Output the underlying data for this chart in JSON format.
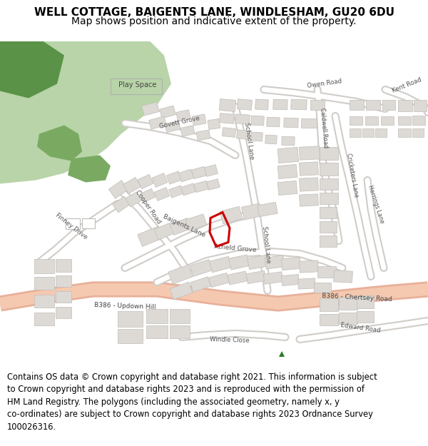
{
  "title_line1": "WELL COTTAGE, BAIGENTS LANE, WINDLESHAM, GU20 6DU",
  "title_line2": "Map shows position and indicative extent of the property.",
  "footer_text": "Contains OS data © Crown copyright and database right 2021. This information is subject to Crown copyright and database rights 2023 and is reproduced with the permission of HM Land Registry. The polygons (including the associated geometry, namely x, y co-ordinates) are subject to Crown copyright and database rights 2023 Ordnance Survey 100026316.",
  "map_bg": "#f5f3f0",
  "road_b386_fill": "#f5c9b0",
  "road_b386_outline": "#e8b09a",
  "road_minor_fill": "#ffffff",
  "road_minor_outline": "#d0ccc8",
  "building_fill": "#dddad6",
  "building_outline": "#c0bdb8",
  "park_light_green": "#b8d4a8",
  "park_dark_green": "#7aaa62",
  "park_darkest_green": "#5a9248",
  "property_color": "#cc0000",
  "label_color": "#555555",
  "title_fontsize": 11,
  "subtitle_fontsize": 10,
  "footer_fontsize": 8.3
}
